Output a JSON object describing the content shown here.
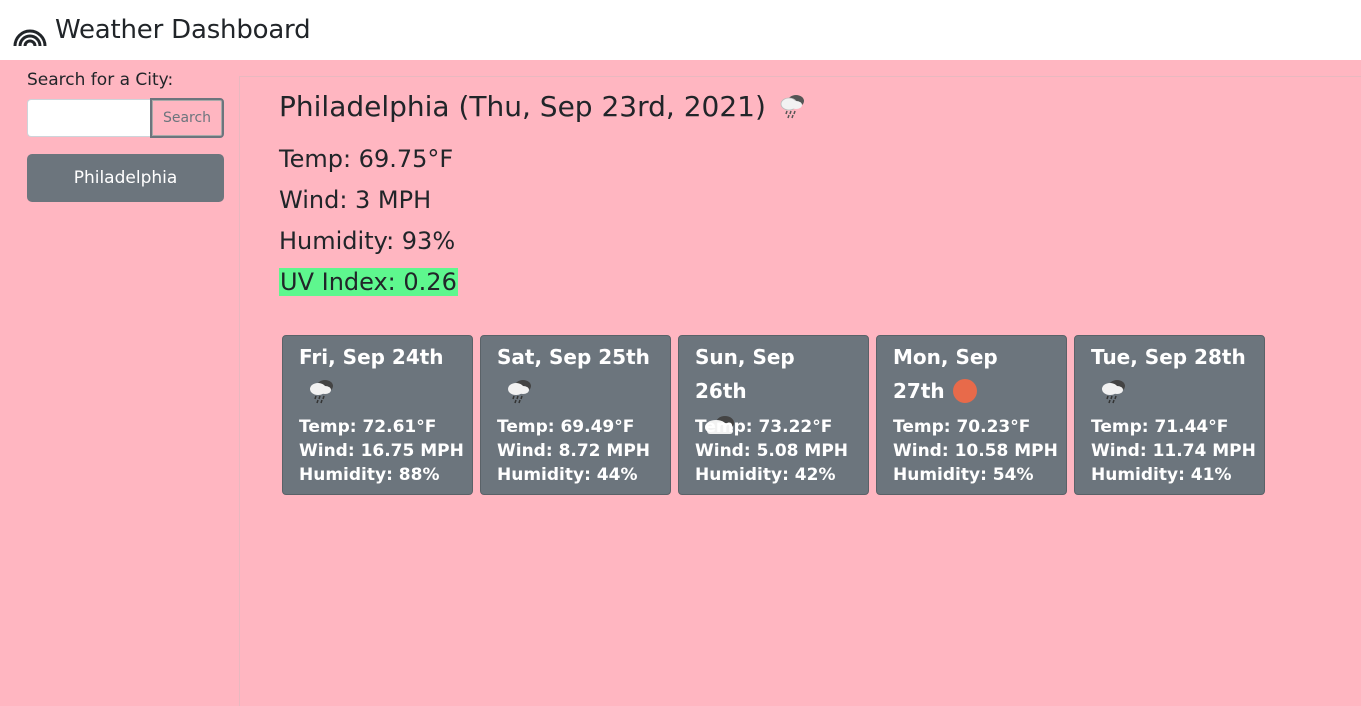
{
  "header": {
    "title": "Weather Dashboard",
    "logo_icon": "rainbow-icon"
  },
  "sidebar": {
    "search_label": "Search for a City:",
    "search_input_value": "",
    "search_button_label": "Search",
    "history": [
      "Philadelphia"
    ]
  },
  "current": {
    "title": "Philadelphia (Thu, Sep 23rd, 2021)",
    "icon": "rain-cloud-icon",
    "temp": "Temp: 69.75°F",
    "wind": "Wind: 3 MPH",
    "humidity": "Humidity: 93%",
    "uv": "UV Index: 0.26",
    "uv_color": "#5ef78e"
  },
  "forecast": [
    {
      "date": "Fri, Sep 24th",
      "icon": "rain-cloud-icon",
      "temp": "Temp: 72.61°F",
      "wind": "Wind: 16.75 MPH",
      "humidity": "Humidity: 88%"
    },
    {
      "date": "Sat, Sep 25th",
      "icon": "rain-cloud-icon",
      "temp": "Temp: 69.49°F",
      "wind": "Wind: 8.72 MPH",
      "humidity": "Humidity: 44%"
    },
    {
      "date": "Sun, Sep 26th",
      "icon": "cloud-icon",
      "temp": "Temp: 73.22°F",
      "wind": "Wind: 5.08 MPH",
      "humidity": "Humidity: 42%"
    },
    {
      "date": "Mon, Sep 27th",
      "icon": "sun-icon",
      "temp": "Temp: 70.23°F",
      "wind": "Wind: 10.58 MPH",
      "humidity": "Humidity: 54%"
    },
    {
      "date": "Tue, Sep 28th",
      "icon": "rain-cloud-icon",
      "temp": "Temp: 71.44°F",
      "wind": "Wind: 11.74 MPH",
      "humidity": "Humidity: 41%"
    }
  ],
  "colors": {
    "background": "#ffb6c1",
    "card": "#6c757d",
    "sun": "#e86a4a"
  }
}
